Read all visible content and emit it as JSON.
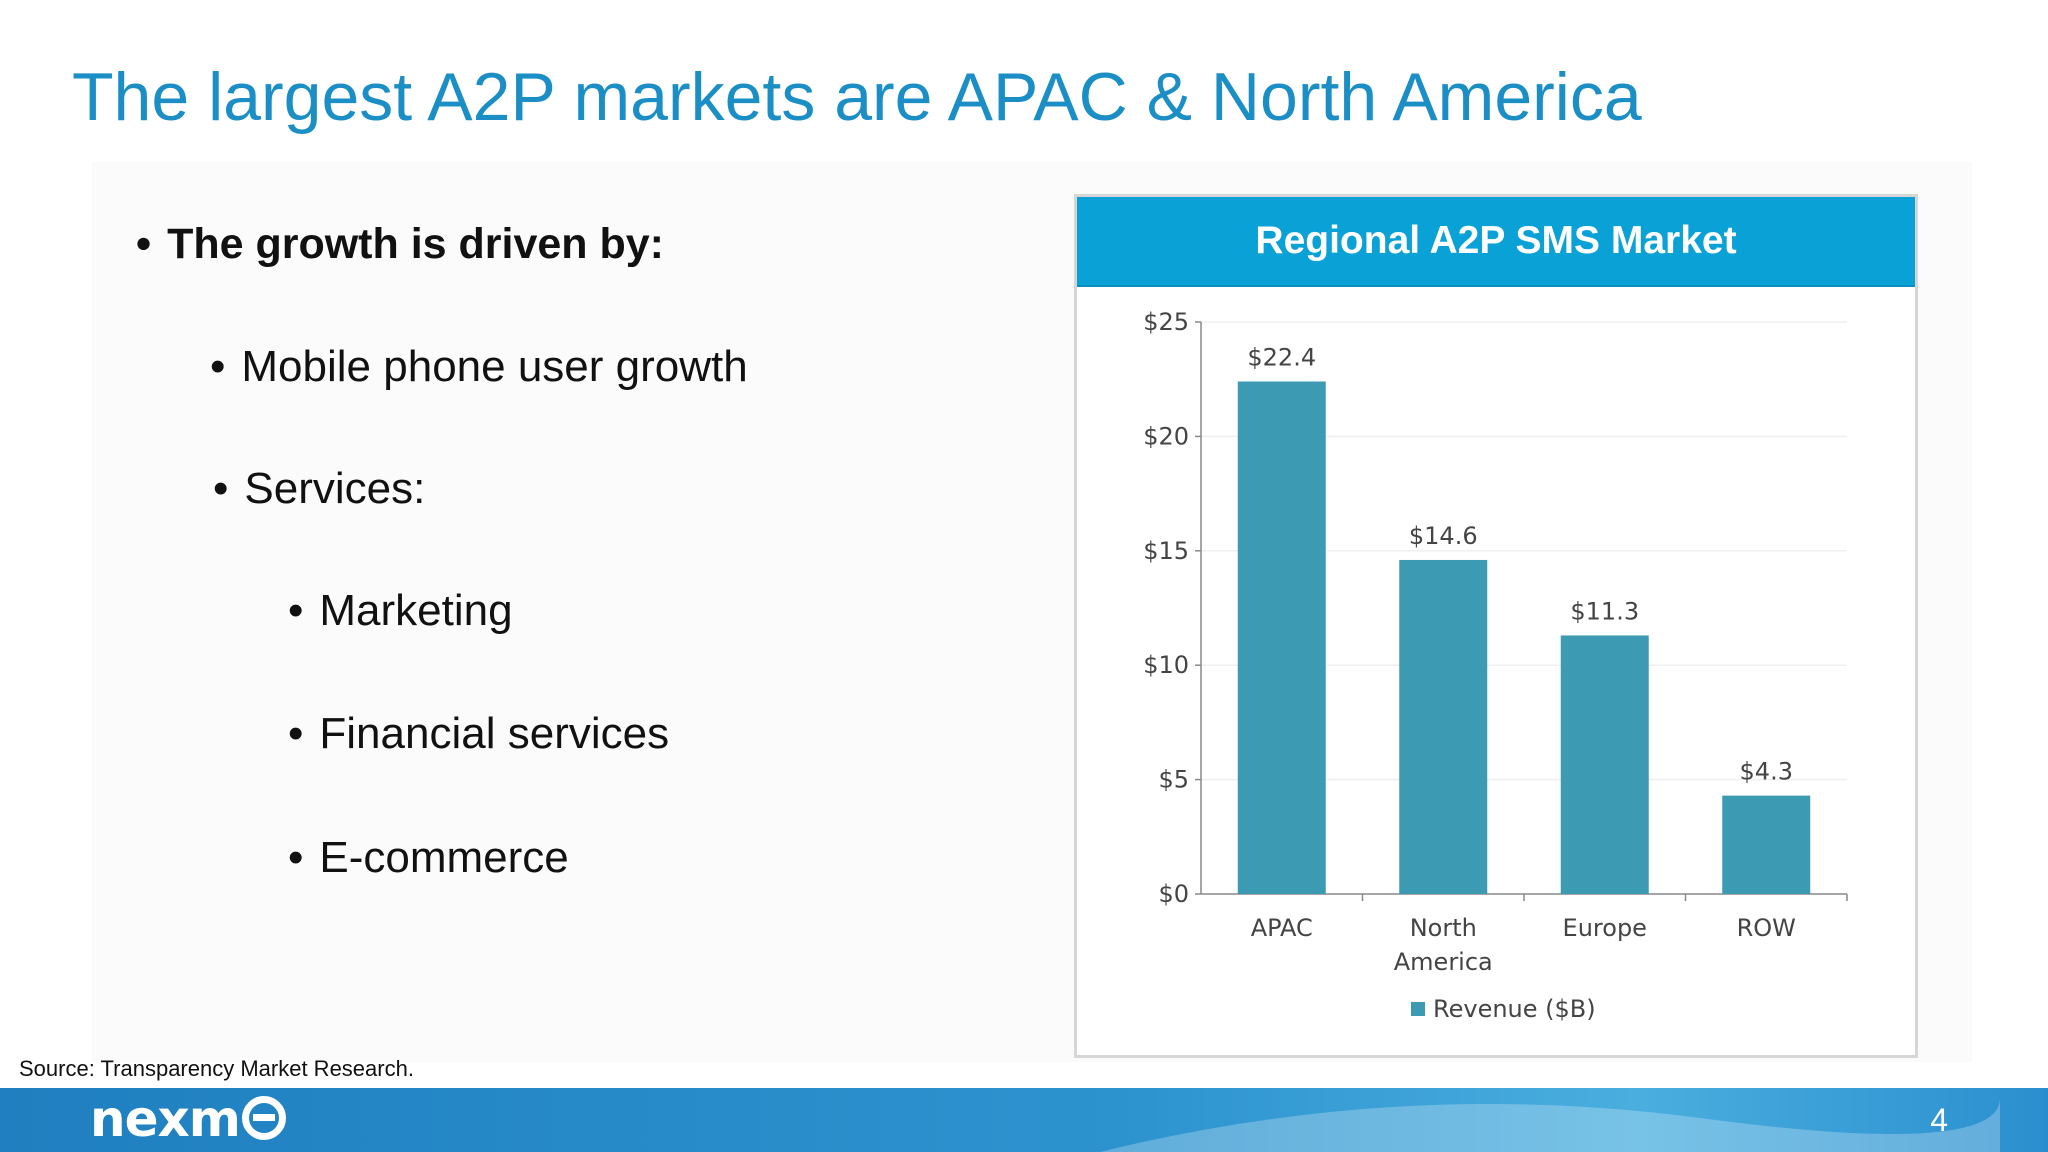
{
  "slide": {
    "title": "The largest A2P markets are APAC & North America",
    "bullets": [
      {
        "text": "The growth is driven by:",
        "level": 1
      },
      {
        "text": "Mobile phone user growth",
        "level": 2
      },
      {
        "text": "Services:",
        "level": 2
      },
      {
        "text": "Marketing",
        "level": 3
      },
      {
        "text": "Financial services",
        "level": 3
      },
      {
        "text": "E-commerce",
        "level": 3
      }
    ],
    "bullet_glyph": "•",
    "source": "Source: Transparency Market Research.",
    "page_number": "4"
  },
  "footer": {
    "logo_text": "nexm",
    "bar_color": "#2d93cf"
  },
  "chart_data": {
    "type": "bar",
    "title": "Regional A2P SMS Market",
    "categories": [
      "APAC",
      "North America",
      "Europe",
      "ROW"
    ],
    "series": [
      {
        "name": "Revenue ($B)",
        "values": [
          22.4,
          14.6,
          11.3,
          4.3
        ],
        "color": "#3d9ab3"
      }
    ],
    "data_labels": [
      "$22.4",
      "$14.6",
      "$11.3",
      "$4.3"
    ],
    "yticks": [
      0,
      5,
      10,
      15,
      20,
      25
    ],
    "ytick_labels": [
      "$0",
      "$5",
      "$10",
      "$15",
      "$20",
      "$25"
    ],
    "ylim": [
      0,
      25
    ],
    "xlabel": "",
    "ylabel": "",
    "grid": true,
    "legend": "bottom",
    "header_color": "#0aa2d6"
  }
}
